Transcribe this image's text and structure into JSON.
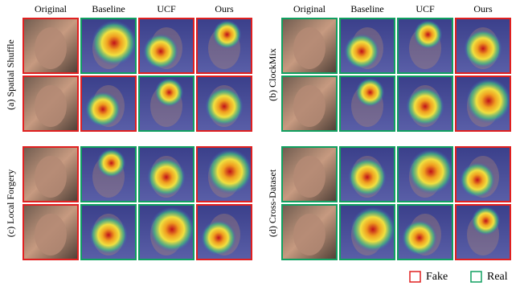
{
  "columns": [
    "Original",
    "Baseline",
    "UCF",
    "Ours"
  ],
  "panels": [
    {
      "label": "(a) Spatial Shuffle"
    },
    {
      "label": "(b) ClockMix"
    },
    {
      "label": "(c) Local Forgery"
    },
    {
      "label": "(d) Cross-Dataset"
    }
  ],
  "legend": [
    "Fake",
    "Real"
  ]
}
